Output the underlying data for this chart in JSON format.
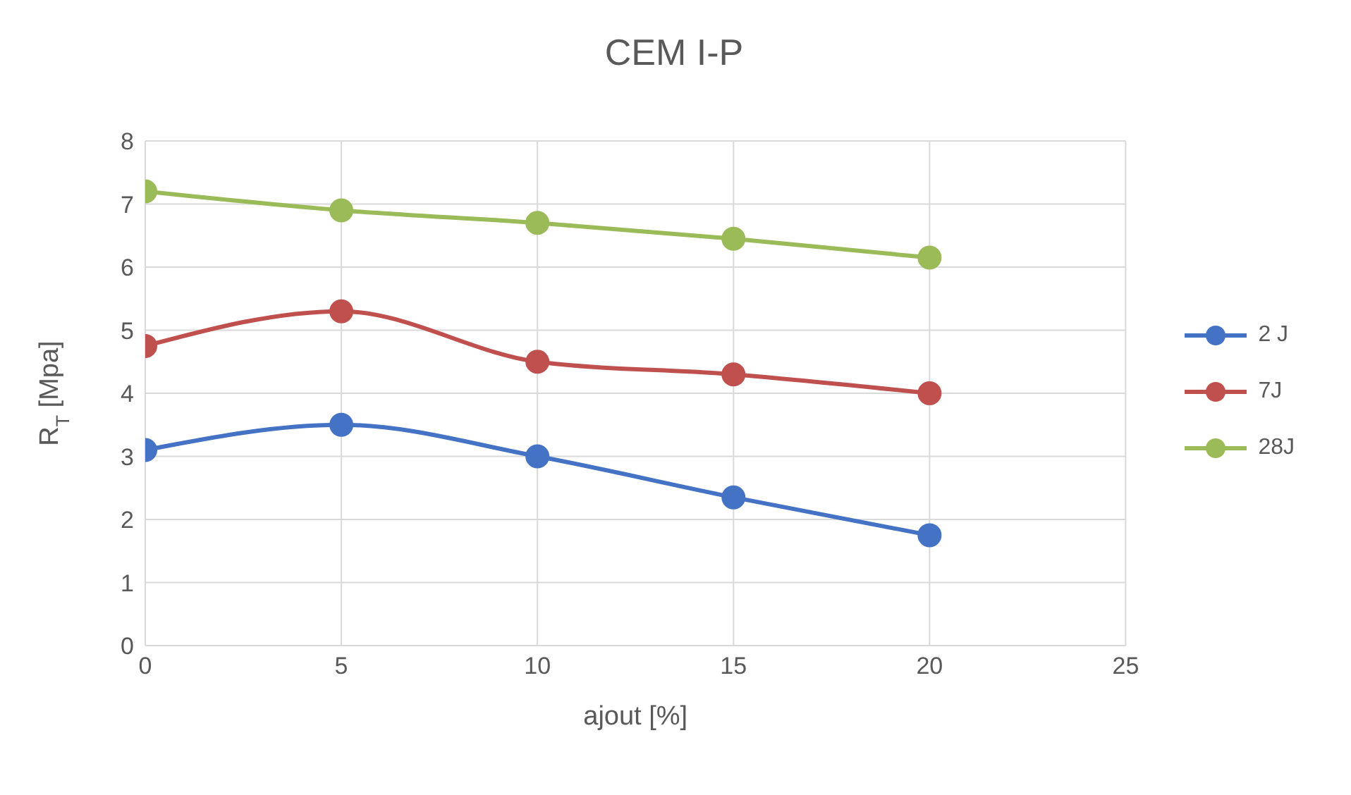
{
  "chart_data": {
    "type": "line",
    "title": "CEM I-P",
    "xlabel": "ajout [%]",
    "ylabel": "R$_{T}$ [Mpa]",
    "x": [
      0,
      5,
      10,
      15,
      20
    ],
    "series": [
      {
        "name": "2 J",
        "color": "#4472c4",
        "values": [
          3.1,
          3.5,
          3.0,
          2.35,
          1.75
        ]
      },
      {
        "name": "7J",
        "color": "#c0504d",
        "values": [
          4.75,
          5.3,
          4.5,
          4.3,
          4.0
        ]
      },
      {
        "name": "28J",
        "color": "#9bbb59",
        "values": [
          7.2,
          6.9,
          6.7,
          6.45,
          6.15
        ]
      }
    ],
    "xlim": [
      0,
      25
    ],
    "xticks": [
      0,
      5,
      10,
      15,
      20,
      25
    ],
    "ylim": [
      0,
      8
    ],
    "yticks": [
      0,
      1,
      2,
      3,
      4,
      5,
      6,
      7,
      8
    ],
    "grid": true,
    "legend": "right",
    "marker": "circle",
    "line_style": "solid"
  }
}
